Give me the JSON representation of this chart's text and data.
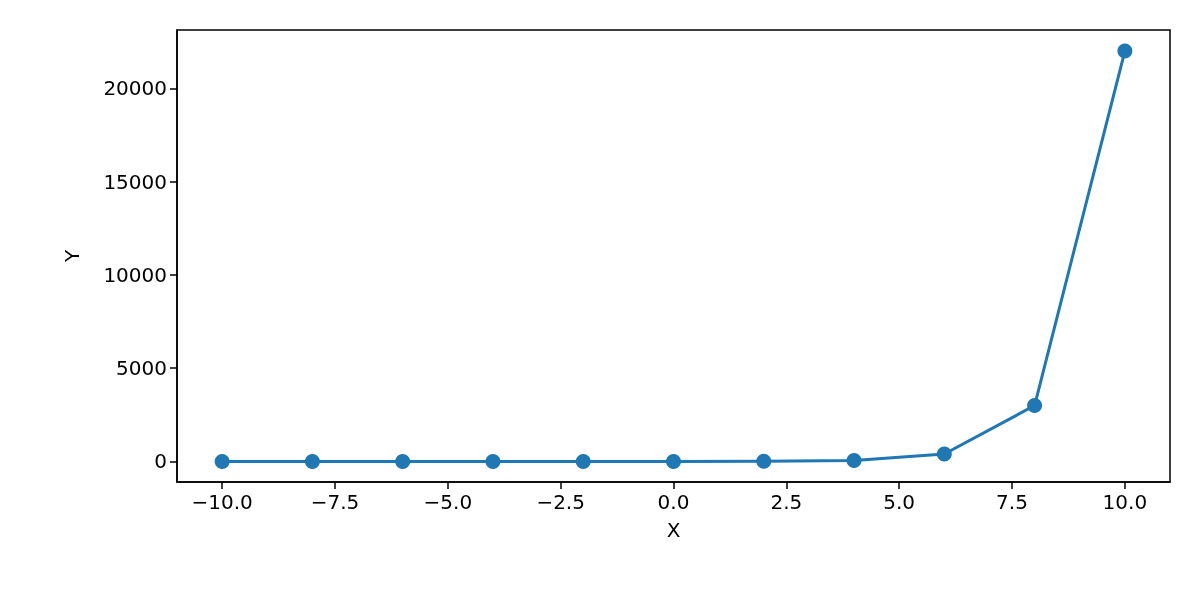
{
  "chart_data": {
    "type": "line",
    "xlabel": "X",
    "ylabel": "Y",
    "x": [
      -10,
      -8,
      -6,
      -4,
      -2,
      0,
      2,
      4,
      6,
      8,
      10
    ],
    "series": [
      {
        "color": "#1f77b4",
        "values": [
          0,
          0,
          0,
          0,
          0,
          0,
          10,
          50,
          400,
          3000,
          22000
        ]
      }
    ],
    "xlim": [
      -11,
      11
    ],
    "xticks": [
      {
        "value": -10,
        "label": "−10.0"
      },
      {
        "value": -7.5,
        "label": "−7.5"
      },
      {
        "value": -5,
        "label": "−5.0"
      },
      {
        "value": -2.5,
        "label": "−2.5"
      },
      {
        "value": 0,
        "label": "0.0"
      },
      {
        "value": 2.5,
        "label": "2.5"
      },
      {
        "value": 5,
        "label": "5.0"
      },
      {
        "value": 7.5,
        "label": "7.5"
      },
      {
        "value": 10,
        "label": "10.0"
      }
    ],
    "ylim": [
      -1100,
      23130
    ],
    "yticks": [
      0,
      5000,
      10000,
      15000,
      20000
    ],
    "marker": "circle",
    "line_style": "solid"
  }
}
